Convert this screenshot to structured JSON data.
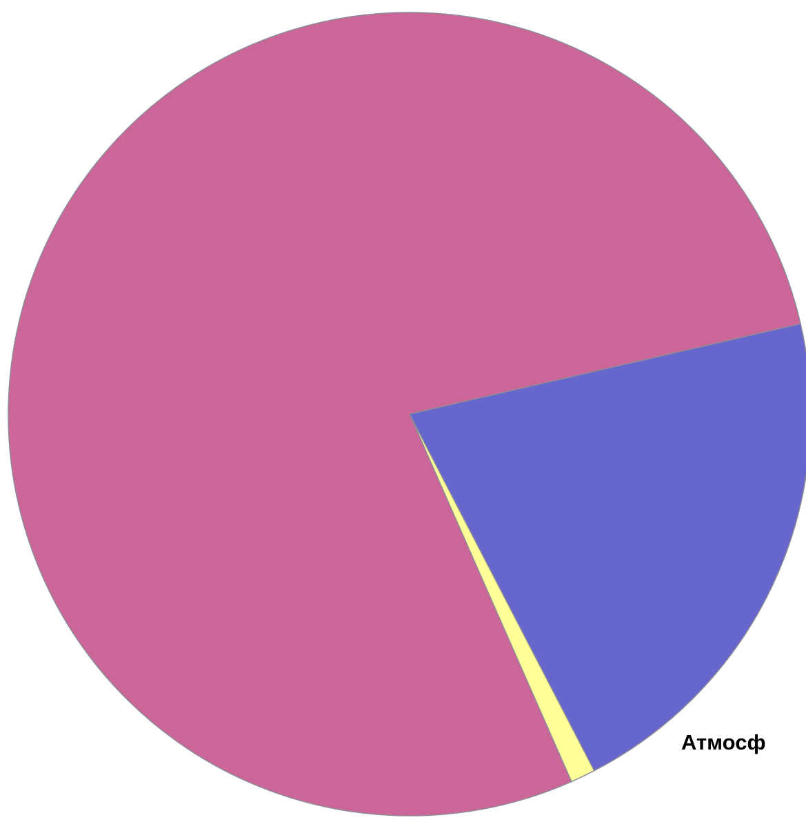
{
  "chart_data": {
    "type": "pie",
    "slices": [
      {
        "value": 21.0,
        "color": "#6666cc"
      },
      {
        "value": 1.0,
        "color": "#ffff99"
      },
      {
        "value": 78.0,
        "color": "#cc6699"
      }
    ],
    "annotations": [
      "Атмосф"
    ],
    "legend": "none",
    "start_angle_deg": 77
  },
  "colors": {
    "slice_outline": "#8c8c99",
    "background": "#ffffff"
  }
}
